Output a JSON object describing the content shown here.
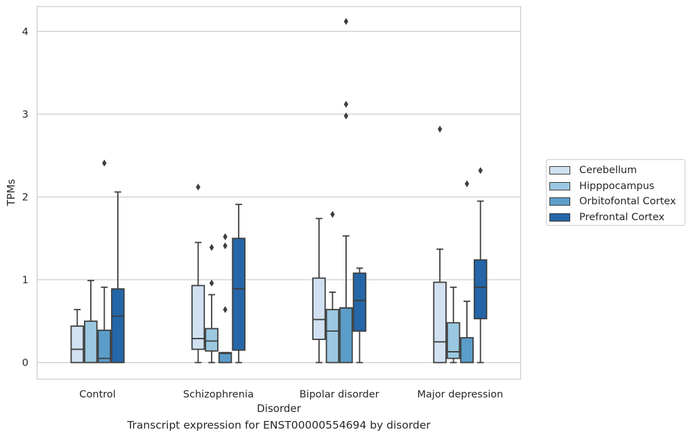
{
  "caption": "Transcript expression for ENST00000554694 by disorder",
  "chart_data": {
    "type": "box",
    "title": "",
    "xlabel": "Disorder",
    "ylabel": "TPMs",
    "ylim": [
      -0.2,
      4.3
    ],
    "yticks": [
      0,
      1,
      2,
      3,
      4
    ],
    "grid": true,
    "legend_position": "right",
    "categories": [
      "Control",
      "Schizophrenia",
      "Bipolar disorder",
      "Major depression"
    ],
    "series": [
      {
        "name": "Cerebellum",
        "color": "#d1e1f1",
        "boxes": [
          {
            "whislo": 0,
            "q1": 0,
            "med": 0.16,
            "q3": 0.44,
            "whishi": 0.64,
            "fliers": []
          },
          {
            "whislo": 0,
            "q1": 0.16,
            "med": 0.29,
            "q3": 0.93,
            "whishi": 1.45,
            "fliers": [
              2.12
            ]
          },
          {
            "whislo": 0,
            "q1": 0.28,
            "med": 0.52,
            "q3": 1.02,
            "whishi": 1.74,
            "fliers": []
          },
          {
            "whislo": 0,
            "q1": 0,
            "med": 0.25,
            "q3": 0.97,
            "whishi": 1.37,
            "fliers": [
              2.82
            ]
          }
        ]
      },
      {
        "name": "Hipppocampus",
        "color": "#9ac8e0",
        "boxes": [
          {
            "whislo": 0,
            "q1": 0,
            "med": 0,
            "q3": 0.5,
            "whishi": 0.99,
            "fliers": []
          },
          {
            "whislo": 0,
            "q1": 0.14,
            "med": 0.26,
            "q3": 0.41,
            "whishi": 0.82,
            "fliers": [
              0.96,
              1.39
            ]
          },
          {
            "whislo": 0,
            "q1": 0,
            "med": 0.38,
            "q3": 0.64,
            "whishi": 0.85,
            "fliers": [
              1.79
            ]
          },
          {
            "whislo": 0,
            "q1": 0.05,
            "med": 0.13,
            "q3": 0.48,
            "whishi": 0.91,
            "fliers": []
          }
        ]
      },
      {
        "name": "Orbitofontal Cortex",
        "color": "#5b9dc9",
        "boxes": [
          {
            "whislo": 0,
            "q1": 0,
            "med": 0.05,
            "q3": 0.39,
            "whishi": 0.91,
            "fliers": [
              2.41
            ]
          },
          {
            "whislo": 0,
            "q1": 0,
            "med": 0.11,
            "q3": 0.12,
            "whishi": 0.12,
            "fliers": [
              0.64,
              1.41,
              1.52
            ]
          },
          {
            "whislo": 0,
            "q1": 0,
            "med": 0.66,
            "q3": 0.66,
            "whishi": 1.53,
            "fliers": [
              2.98,
              3.12,
              4.12
            ]
          },
          {
            "whislo": 0,
            "q1": 0,
            "med": 0,
            "q3": 0.3,
            "whishi": 0.74,
            "fliers": [
              2.16
            ]
          }
        ]
      },
      {
        "name": "Prefrontal Cortex",
        "color": "#2566a8",
        "boxes": [
          {
            "whislo": 0,
            "q1": 0,
            "med": 0.56,
            "q3": 0.89,
            "whishi": 2.06,
            "fliers": []
          },
          {
            "whislo": 0,
            "q1": 0.15,
            "med": 0.89,
            "q3": 1.5,
            "whishi": 1.91,
            "fliers": []
          },
          {
            "whislo": 0,
            "q1": 0.38,
            "med": 0.75,
            "q3": 1.08,
            "whishi": 1.14,
            "fliers": []
          },
          {
            "whislo": 0,
            "q1": 0.53,
            "med": 0.91,
            "q3": 1.24,
            "whishi": 1.95,
            "fliers": [
              2.32
            ]
          }
        ]
      }
    ]
  }
}
